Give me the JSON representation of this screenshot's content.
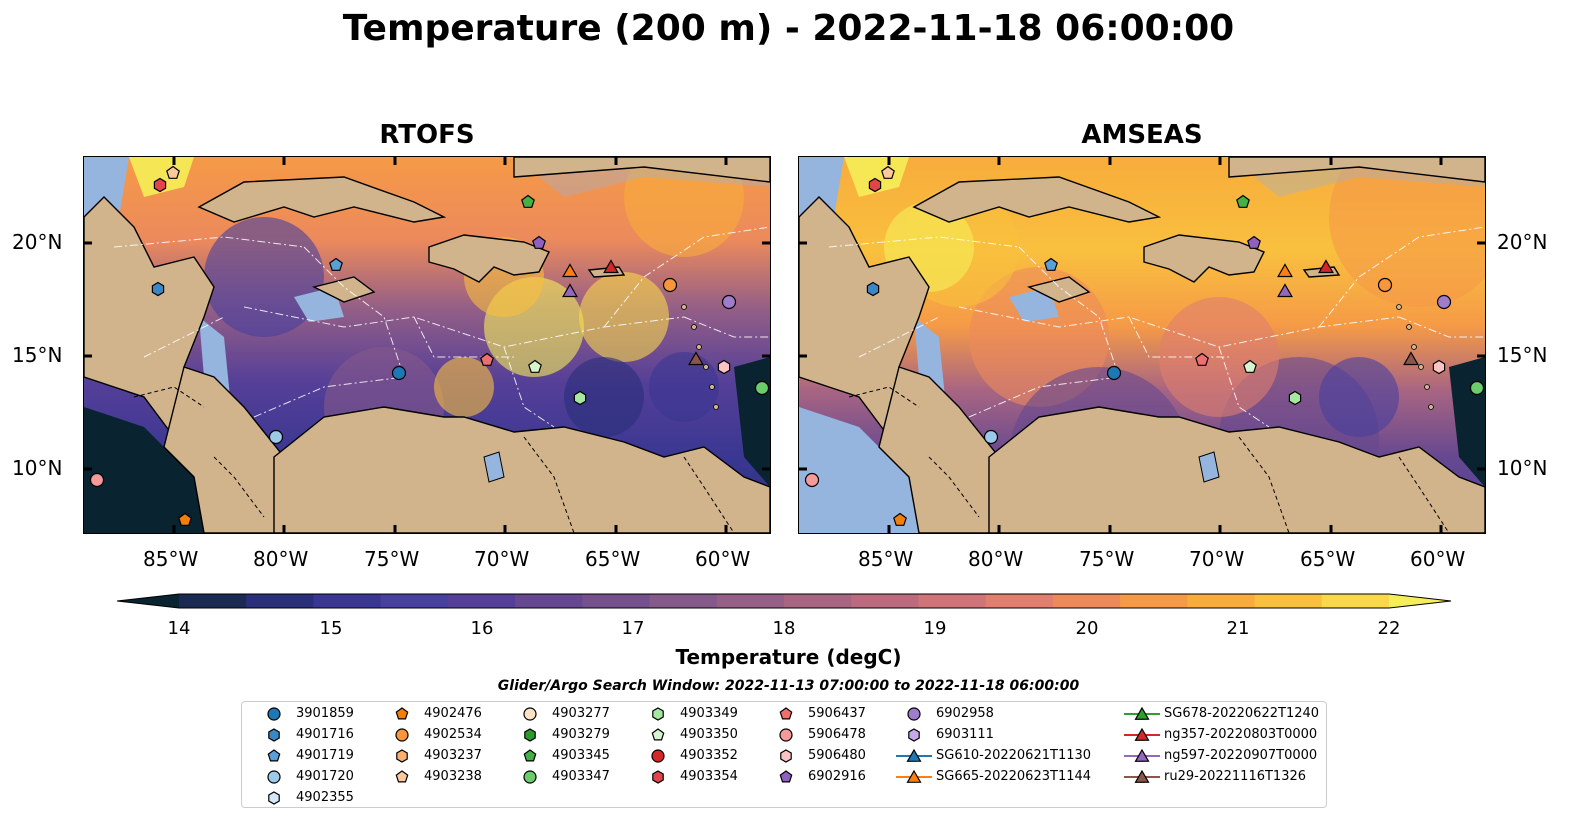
{
  "figure": {
    "title": "Temperature (200 m) - 2022-11-18 06:00:00",
    "colorbar_label": "Temperature (degC)",
    "colorbar_ticks": [
      "14",
      "15",
      "16",
      "17",
      "18",
      "19",
      "20",
      "21",
      "22"
    ],
    "search_window": "Glider/Argo Search Window: 2022-11-13 07:00:00 to 2022-11-18 06:00:00",
    "lat_labels": [
      "20°N",
      "15°N",
      "10°N"
    ],
    "lon_labels": [
      "85°W",
      "80°W",
      "75°W",
      "70°W",
      "65°W",
      "60°W"
    ]
  },
  "panels": [
    {
      "title": "RTOFS"
    },
    {
      "title": "AMSEAS"
    }
  ],
  "colormap": [
    "#0a2330",
    "#1b2a52",
    "#2a2f7a",
    "#3a3792",
    "#48409e",
    "#553f98",
    "#664890",
    "#74508c",
    "#85598a",
    "#955f86",
    "#a86582",
    "#bb6b7d",
    "#cf7478",
    "#e07f6e",
    "#ec8a5c",
    "#f59a47",
    "#f8ac3c",
    "#f9c03e",
    "#f9d84a",
    "#f5ee58"
  ],
  "colors": {
    "land": "#d2b48c",
    "shallow": "#95b4de",
    "ocean_cold": "#0a2330",
    "ocean_warm": "#f5ee58"
  },
  "legend": {
    "columns": [
      [
        {
          "label": "3901859",
          "marker": "circle",
          "color": "#1f77b4"
        },
        {
          "label": "4901716",
          "marker": "hexagon",
          "color": "#3a87c4"
        },
        {
          "label": "4901719",
          "marker": "pentagon",
          "color": "#5aa0d8"
        },
        {
          "label": "4901720",
          "marker": "circle",
          "color": "#9ccae8"
        },
        {
          "label": "4902355",
          "marker": "hexagon",
          "color": "#d4e8f7"
        }
      ],
      [
        {
          "label": "4902476",
          "marker": "pentagon",
          "color": "#f07f0c"
        },
        {
          "label": "4902534",
          "marker": "circle",
          "color": "#f8963a"
        },
        {
          "label": "4903237",
          "marker": "hexagon",
          "color": "#fbb070"
        },
        {
          "label": "4903238",
          "marker": "pentagon",
          "color": "#fdc99a"
        }
      ],
      [
        {
          "label": "4903277",
          "marker": "circle",
          "color": "#fee2c6"
        },
        {
          "label": "4903279",
          "marker": "hexagon",
          "color": "#2a9a2a"
        },
        {
          "label": "4903345",
          "marker": "pentagon",
          "color": "#45b045"
        },
        {
          "label": "4903347",
          "marker": "circle",
          "color": "#6ccc6c"
        }
      ],
      [
        {
          "label": "4903349",
          "marker": "hexagon",
          "color": "#a6e8a2"
        },
        {
          "label": "4903350",
          "marker": "pentagon",
          "color": "#d6f5cf"
        },
        {
          "label": "4903352",
          "marker": "circle",
          "color": "#d62728"
        },
        {
          "label": "4903354",
          "marker": "hexagon",
          "color": "#e0454a"
        }
      ],
      [
        {
          "label": "5906437",
          "marker": "pentagon",
          "color": "#ef6f6f"
        },
        {
          "label": "5906478",
          "marker": "circle",
          "color": "#f59a9a"
        },
        {
          "label": "5906480",
          "marker": "hexagon",
          "color": "#fbc4c4"
        },
        {
          "label": "6902916",
          "marker": "pentagon",
          "color": "#8f60c0"
        }
      ],
      [
        {
          "label": "6902958",
          "marker": "circle",
          "color": "#a07ccc"
        },
        {
          "label": "6903111",
          "marker": "hexagon",
          "color": "#c7a8ea"
        },
        {
          "label": "SG610-20220621T1130",
          "marker": "triangle",
          "color": "#1f77b4"
        },
        {
          "label": "SG665-20220623T1144",
          "marker": "triangle",
          "color": "#ff7f0e"
        }
      ],
      [
        {
          "label": "SG678-20220622T1240",
          "marker": "triangle",
          "color": "#2ca02c"
        },
        {
          "label": "ng357-20220803T0000",
          "marker": "triangle",
          "color": "#d62728"
        },
        {
          "label": "ng597-20220907T0000",
          "marker": "triangle",
          "color": "#9467bd"
        },
        {
          "label": "ru29-20221116T1326",
          "marker": "triangle",
          "color": "#8c564b"
        }
      ]
    ]
  }
}
